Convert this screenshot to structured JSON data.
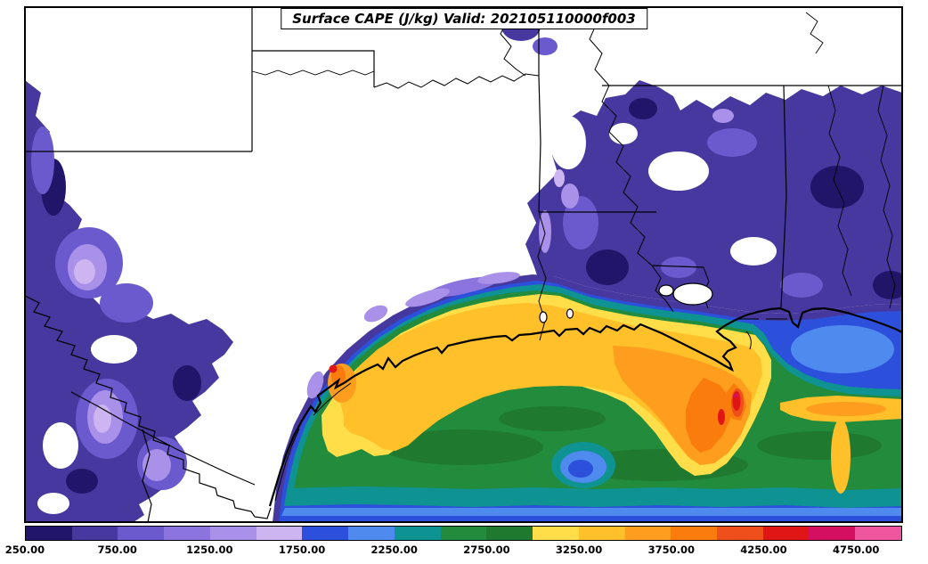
{
  "title": "Surface CAPE (J/kg) Valid: 202105110000f003",
  "chart_data": {
    "type": "heatmap",
    "subtype": "filled-contour-weather-map",
    "variable": "Surface CAPE",
    "units": "J/kg",
    "valid_time": "202105110000f003",
    "region_depicted": "South-central United States and Gulf of Mexico coast (TX, OK, AR, LA, MS, AL, northern Mexico)",
    "colorbar_range": [
      250,
      5000
    ],
    "contour_interval": 250,
    "levels": [
      250,
      500,
      750,
      1000,
      1250,
      1500,
      1750,
      2000,
      2250,
      2500,
      2750,
      3000,
      3250,
      3500,
      3750,
      4000,
      4250,
      4500,
      4750,
      5000
    ],
    "colors": [
      "#201569",
      "#46389E",
      "#6A5ACD",
      "#8B74DE",
      "#A990E8",
      "#CDB5F2",
      "#2C50DC",
      "#4F8AEE",
      "#0F9292",
      "#228B3C",
      "#1F7A2F",
      "#FFDE4A",
      "#FFC02A",
      "#FF9E1E",
      "#F97C0C",
      "#EF4F1A",
      "#E01616",
      "#D40F62",
      "#F055A0"
    ],
    "tick_values": [
      250,
      750,
      1250,
      1750,
      2250,
      2750,
      3250,
      3750,
      4250,
      4750
    ],
    "tick_labels": [
      "250.00",
      "750.00",
      "1250.00",
      "1750.00",
      "2250.00",
      "2750.00",
      "3250.00",
      "3750.00",
      "4250.00",
      "4750.00"
    ],
    "field_summary": "CAPE maximum ridge (3000-4500+ J/kg, yellow/orange/red) along Texas-Louisiana coast and offshore near the Mississippi delta; broad 2500-3000 J/kg (green) over northwest Gulf; 1750-2500 (blue/teal) far offshore south and east of delta; 250-1750 (purples) over west Texas, northern Mexico, Arkansas, Mississippi and Alabama; CAPE below 250 (white) over interior Texas and Oklahoma."
  },
  "frame": {
    "background": "#FFFFFF",
    "border_color": "#000000"
  }
}
